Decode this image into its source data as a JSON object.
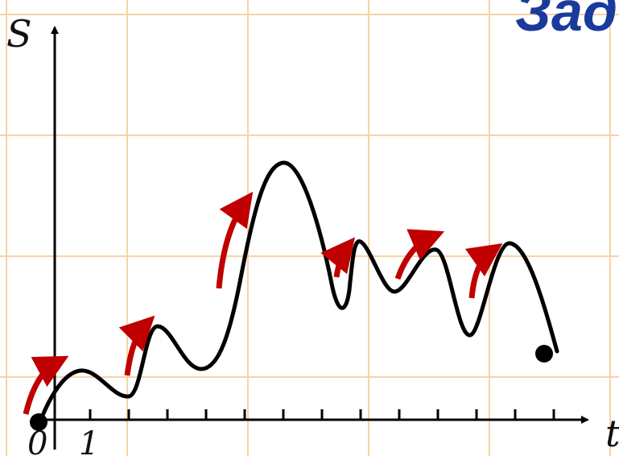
{
  "title_fragment": "Зад",
  "axis": {
    "y_label": "S",
    "x_label": "t",
    "origin_label": "0",
    "tick_one_label": "1"
  },
  "colors": {
    "grid": "#f7d3a6",
    "curve": "#000000",
    "arrow": "#c00000",
    "title": "#1a3a9c"
  }
}
